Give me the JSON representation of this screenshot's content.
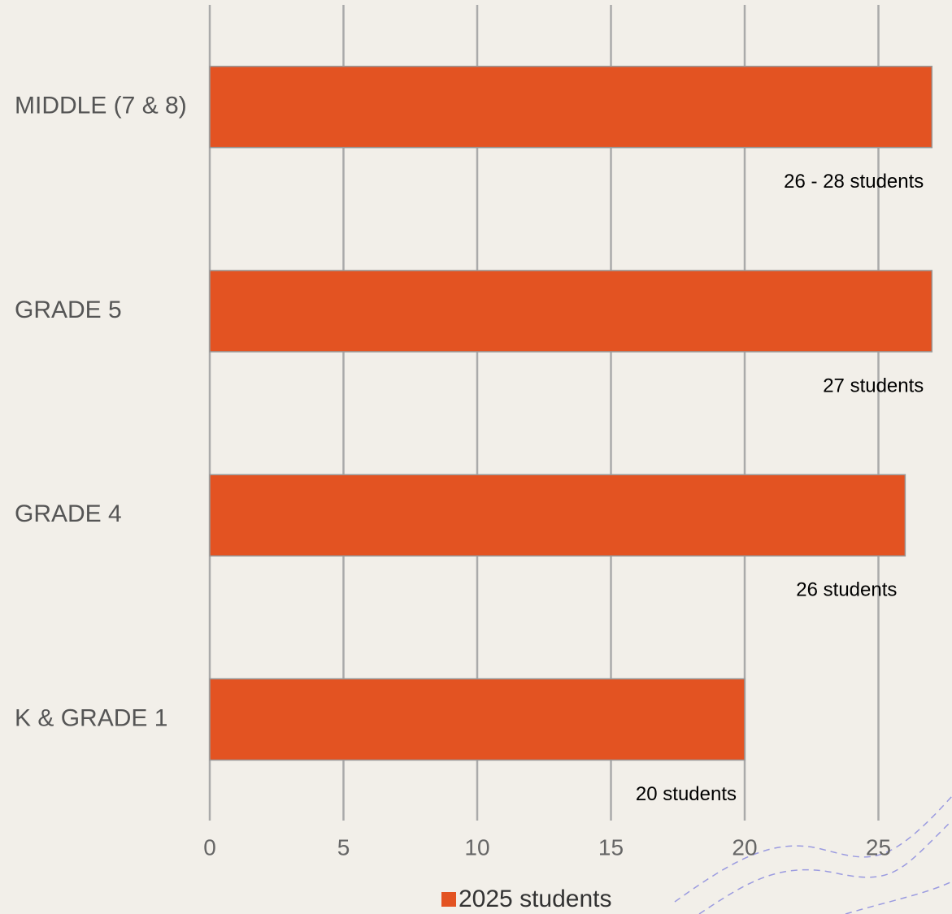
{
  "chart_data": {
    "type": "bar",
    "orientation": "horizontal",
    "categories": [
      "MIDDLE (7 & 8)",
      "GRADE 5",
      "GRADE 4",
      "K & GRADE 1"
    ],
    "series": [
      {
        "name": "2025 students",
        "color": "#e35322",
        "values": [
          27,
          27,
          26,
          20
        ],
        "value_labels": [
          "26 - 28 students",
          "27 students",
          "26 students",
          "20 students"
        ]
      }
    ],
    "xlim": [
      0,
      27.5
    ],
    "xticks": [
      0,
      5,
      10,
      15,
      20,
      25
    ],
    "grid": true,
    "legend": "bottom"
  }
}
